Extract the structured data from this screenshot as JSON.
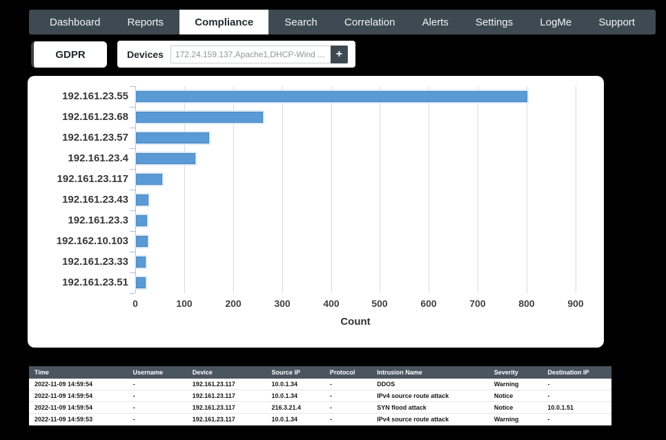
{
  "nav": {
    "items": [
      {
        "label": "Dashboard",
        "active": false
      },
      {
        "label": "Reports",
        "active": false
      },
      {
        "label": "Compliance",
        "active": true
      },
      {
        "label": "Search",
        "active": false
      },
      {
        "label": "Correlation",
        "active": false
      },
      {
        "label": "Alerts",
        "active": false
      },
      {
        "label": "Settings",
        "active": false
      },
      {
        "label": "LogMe",
        "active": false
      },
      {
        "label": "Support",
        "active": false
      }
    ]
  },
  "filters": {
    "gdpr_label": "GDPR",
    "devices_label": "Devices",
    "devices_value": "172.24.159.137,Apache1,DHCP-Wind ...",
    "add_button_label": "+"
  },
  "chart_data": {
    "type": "bar",
    "orientation": "horizontal",
    "title": "",
    "categories": [
      "192.161.23.55",
      "192.161.23.68",
      "192.161.23.57",
      "192.161.23.4",
      "192.161.23.117",
      "192.161.23.43",
      "192.161.23.3",
      "192.162.10.103",
      "192.161.23.33",
      "192.161.23.51"
    ],
    "values": [
      800,
      260,
      150,
      122,
      54,
      26,
      23,
      24,
      20,
      20
    ],
    "xlabel": "Count",
    "ylabel": "",
    "xlim": [
      0,
      930
    ],
    "xticks": [
      0,
      100,
      200,
      300,
      400,
      500,
      600,
      700,
      800,
      900
    ],
    "grid": true,
    "legend": false,
    "bar_color": "#5b9bd5"
  },
  "table": {
    "columns": [
      "Time",
      "Username",
      "Device",
      "Source IP",
      "Protocol",
      "Intrusion Name",
      "Severity",
      "Destination IP"
    ],
    "rows": [
      [
        "2022-11-09 14:59:54",
        "-",
        "192.161.23.117",
        "10.0.1.34",
        "-",
        "DDOS",
        "Warning",
        "-"
      ],
      [
        "2022-11-09 14:59:54",
        "-",
        "192.161.23.117",
        "10.0.1.34",
        "-",
        "IPv4 source route attack",
        "Notice",
        "-"
      ],
      [
        "2022-11-09 14:59:54",
        "-",
        "192.161.23.117",
        "216.3.21.4",
        "-",
        "SYN flood attack",
        "Notice",
        "10.0.1.51"
      ],
      [
        "2022-11-09 14:59:53",
        "-",
        "192.161.23.117",
        "10.0.1.34",
        "-",
        "IPv4 source route attack",
        "Warning",
        "-"
      ]
    ]
  },
  "colors": {
    "nav_bg": "#3e4a52",
    "active_tab_bg": "#ffffff",
    "bar_fill": "#5b9bd5",
    "table_header_bg": "#4a5560",
    "page_bg": "#000000"
  }
}
